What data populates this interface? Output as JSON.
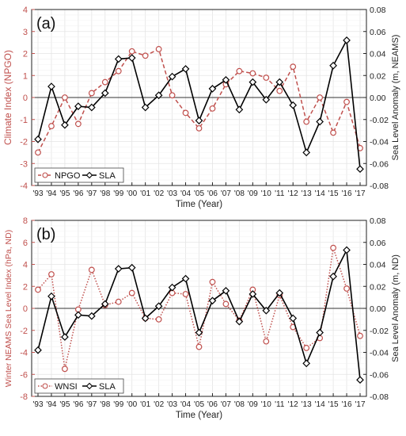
{
  "chart_data": [
    {
      "type": "line",
      "panel_label": "(a)",
      "xlabel": "Time (Year)",
      "ylabel_left": "Climate Index (NPGO)",
      "ylabel_right": "Sea Level Anomaly (m, NEAMS)",
      "categories": [
        "'93",
        "'94",
        "'95",
        "'96",
        "'97",
        "'98",
        "'99",
        "'00",
        "'01",
        "'02",
        "'03",
        "'04",
        "'05",
        "'06",
        "'07",
        "'08",
        "'09",
        "'10",
        "'11",
        "'12",
        "'13",
        "'14",
        "'15",
        "'16",
        "'17"
      ],
      "ylim_left": [
        -4,
        4
      ],
      "yticks_left": [
        "-4",
        "-3",
        "-2",
        "-1",
        "0",
        "1",
        "2",
        "3",
        "4"
      ],
      "ylim_right": [
        -0.08,
        0.08
      ],
      "yticks_right": [
        "-0.08",
        "-0.06",
        "-0.04",
        "-0.02",
        "0.00",
        "0.02",
        "0.04",
        "0.06",
        "0.08"
      ],
      "grid": true,
      "legend_position": "bottom-left",
      "series": [
        {
          "name": "NPGO",
          "axis": "left",
          "color": "#c0504d",
          "style": "dashed",
          "marker": "circle",
          "values": [
            -2.5,
            -1.3,
            0.0,
            -1.2,
            0.2,
            0.7,
            1.2,
            2.1,
            1.9,
            2.2,
            0.1,
            -0.7,
            -1.4,
            -0.5,
            0.6,
            1.2,
            1.1,
            0.9,
            0.3,
            1.4,
            -1.1,
            0.0,
            -1.6,
            -0.2,
            -2.3
          ]
        },
        {
          "name": "SLA",
          "axis": "right",
          "color": "#000000",
          "style": "solid",
          "marker": "diamond",
          "values": [
            -0.038,
            0.01,
            -0.025,
            -0.008,
            -0.009,
            0.004,
            0.035,
            0.036,
            -0.009,
            0.002,
            0.019,
            0.026,
            -0.021,
            0.008,
            0.016,
            -0.011,
            0.014,
            -0.002,
            0.014,
            -0.007,
            -0.05,
            -0.022,
            0.029,
            0.052,
            -0.065
          ]
        }
      ]
    },
    {
      "type": "line",
      "panel_label": "(b)",
      "xlabel": "Time (Year)",
      "ylabel_left": "Winter NEAMS Sea Level Index (hPa, ND)",
      "ylabel_right": "Sea Level Anomaly (m, ND)",
      "categories": [
        "'93",
        "'94",
        "'95",
        "'96",
        "'97",
        "'98",
        "'99",
        "'00",
        "'01",
        "'02",
        "'03",
        "'04",
        "'05",
        "'06",
        "'07",
        "'08",
        "'09",
        "'10",
        "'11",
        "'12",
        "'13",
        "'14",
        "'15",
        "'16",
        "'17"
      ],
      "ylim_left": [
        -8,
        8
      ],
      "yticks_left": [
        "-8",
        "-6",
        "-4",
        "-2",
        "0",
        "2",
        "4",
        "6",
        "8"
      ],
      "ylim_right": [
        -0.08,
        0.08
      ],
      "yticks_right": [
        "-0.08",
        "-0.06",
        "-0.04",
        "-0.02",
        "0.00",
        "0.02",
        "0.04",
        "0.06",
        "0.08"
      ],
      "grid": true,
      "legend_position": "bottom-left",
      "series": [
        {
          "name": "WNSI",
          "axis": "left",
          "color": "#c0504d",
          "style": "dotted",
          "marker": "circle",
          "values": [
            1.7,
            3.1,
            -5.5,
            -0.1,
            3.5,
            0.3,
            0.6,
            1.4,
            -0.9,
            -1.0,
            1.4,
            1.3,
            -3.5,
            2.4,
            0.4,
            -1.1,
            1.7,
            -3.0,
            1.2,
            -1.7,
            -3.6,
            -2.7,
            5.5,
            1.8,
            -2.5
          ]
        },
        {
          "name": "SLA",
          "axis": "right",
          "color": "#000000",
          "style": "solid",
          "marker": "diamond",
          "values": [
            -0.038,
            0.011,
            -0.026,
            -0.006,
            -0.007,
            0.004,
            0.036,
            0.037,
            -0.009,
            0.002,
            0.019,
            0.027,
            -0.022,
            0.007,
            0.016,
            -0.012,
            0.013,
            -0.002,
            0.014,
            -0.009,
            -0.05,
            -0.022,
            0.029,
            0.053,
            -0.065
          ]
        }
      ]
    }
  ]
}
